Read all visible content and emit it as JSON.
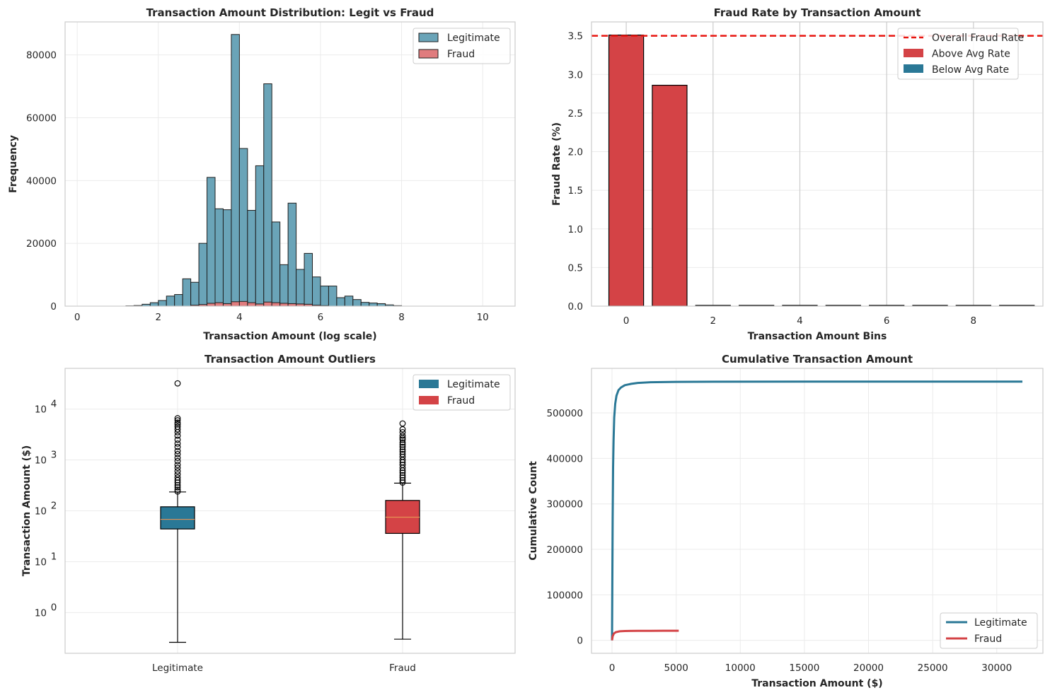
{
  "colors": {
    "legit": "#2a7896",
    "fraud": "#d44346",
    "legit_hist": "#6aa4b8",
    "fraud_hist": "#e07c7e",
    "grid": "#ebebeb",
    "spine": "#cccccc",
    "overall_line": "#e8150f",
    "median": "#e69254"
  },
  "chart_data": [
    {
      "type": "histogram",
      "title": "Transaction Amount Distribution: Legit vs Fraud",
      "xlabel": "Transaction Amount (log scale)",
      "ylabel": "Frequency",
      "xlim": [
        -0.3,
        10.8
      ],
      "ylim": [
        0,
        90500
      ],
      "xticks": [
        0,
        2,
        4,
        6,
        8,
        10
      ],
      "xtick_labels": [
        "0",
        "2",
        "4",
        "6",
        "8",
        "10"
      ],
      "yticks": [
        0,
        20000,
        40000,
        60000,
        80000
      ],
      "ytick_labels": [
        "0",
        "20000",
        "40000",
        "60000",
        "80000"
      ],
      "legend_position": "top-right",
      "bin_width": 0.2,
      "series": [
        {
          "name": "Legitimate",
          "bin_starts": [
            1.2,
            1.4,
            1.6,
            1.8,
            2.0,
            2.2,
            2.4,
            2.6,
            2.8,
            3.0,
            3.2,
            3.4,
            3.6,
            3.8,
            4.0,
            4.2,
            4.4,
            4.6,
            4.8,
            5.0,
            5.2,
            5.4,
            5.6,
            5.8,
            6.0,
            6.2,
            6.4,
            6.6,
            6.8,
            7.0,
            7.2,
            7.4,
            7.6,
            7.8
          ],
          "values": [
            100,
            200,
            600,
            1100,
            1800,
            3200,
            3700,
            8700,
            7600,
            20000,
            41000,
            31000,
            30700,
            86500,
            50200,
            30500,
            44700,
            70800,
            26800,
            13200,
            32800,
            11700,
            16800,
            9300,
            6400,
            6400,
            2700,
            3200,
            2100,
            1200,
            1000,
            800,
            400,
            150
          ]
        },
        {
          "name": "Fraud",
          "bin_starts": [
            2.8,
            3.0,
            3.2,
            3.4,
            3.6,
            3.8,
            4.0,
            4.2,
            4.4,
            4.6,
            4.8,
            5.0,
            5.2,
            5.4,
            5.6,
            5.8,
            6.0
          ],
          "values": [
            300,
            500,
            900,
            1100,
            800,
            1400,
            1500,
            1100,
            700,
            1300,
            1100,
            900,
            800,
            700,
            600,
            300,
            150
          ]
        }
      ]
    },
    {
      "type": "bar",
      "title": "Fraud Rate by Transaction Amount",
      "xlabel": "Transaction Amount Bins",
      "ylabel": "Fraud Rate (%)",
      "xlim": [
        -0.8,
        9.6
      ],
      "ylim": [
        0,
        3.68
      ],
      "xticks": [
        0,
        2,
        4,
        6,
        8
      ],
      "xtick_labels": [
        "0",
        "2",
        "4",
        "6",
        "8"
      ],
      "yticks": [
        0,
        0.5,
        1.0,
        1.5,
        2.0,
        2.5,
        3.0,
        3.5
      ],
      "ytick_labels": [
        "0.0",
        "0.5",
        "1.0",
        "1.5",
        "2.0",
        "2.5",
        "3.0",
        "3.5"
      ],
      "categories": [
        0,
        1,
        2,
        3,
        4,
        5,
        6,
        7,
        8,
        9
      ],
      "values": [
        3.51,
        2.86,
        0.01,
        0.01,
        0.01,
        0.01,
        0.01,
        0.01,
        0.01,
        0.01
      ],
      "overall_fraud_rate": 3.5,
      "legend_position": "top-right",
      "legend": [
        "Overall Fraud Rate",
        "Above Avg Rate",
        "Below Avg Rate"
      ]
    },
    {
      "type": "boxplot",
      "title": "Transaction Amount Outliers",
      "xlabel": "",
      "ylabel": "Transaction Amount ($)",
      "yscale": "log",
      "ylim_log10": [
        -0.8,
        4.8
      ],
      "ytick_exponents": [
        "0",
        "1",
        "2",
        "3",
        "4"
      ],
      "ytick_base": "10",
      "legend_position": "top-right",
      "legend": [
        "Legitimate",
        "Fraud"
      ],
      "boxes": [
        {
          "label": "Legitimate",
          "whislo": 0.26,
          "q1": 44,
          "median": 68,
          "q3": 120,
          "whishi": 235,
          "outliers": [
            240,
            260,
            290,
            320,
            360,
            400,
            450,
            520,
            600,
            700,
            800,
            950,
            1100,
            1300,
            1500,
            1800,
            2100,
            2500,
            3000,
            3500,
            4000,
            4500,
            5000,
            5400,
            6000,
            6600,
            32000
          ]
        },
        {
          "label": "Fraud",
          "whislo": 0.3,
          "q1": 36,
          "median": 75,
          "q3": 160,
          "whishi": 350,
          "outliers": [
            360,
            400,
            450,
            500,
            560,
            620,
            700,
            800,
            900,
            1000,
            1150,
            1300,
            1450,
            1600,
            1800,
            2000,
            2200,
            2500,
            2700,
            3000,
            3500,
            4000,
            5200
          ]
        }
      ]
    },
    {
      "type": "line",
      "title": "Cumulative Transaction Amount",
      "xlabel": "Transaction Amount ($)",
      "ylabel": "Cumulative Count",
      "xlim": [
        -1600,
        33600
      ],
      "ylim": [
        -28500,
        598000
      ],
      "xticks": [
        0,
        5000,
        10000,
        15000,
        20000,
        25000,
        30000
      ],
      "xtick_labels": [
        "0",
        "5000",
        "10000",
        "15000",
        "20000",
        "25000",
        "30000"
      ],
      "yticks": [
        0,
        100000,
        200000,
        300000,
        400000,
        500000
      ],
      "ytick_labels": [
        "0",
        "100000",
        "200000",
        "300000",
        "400000",
        "500000"
      ],
      "legend_position": "bottom-right",
      "series": [
        {
          "name": "Legitimate",
          "x": [
            0,
            20,
            50,
            80,
            120,
            170,
            250,
            350,
            500,
            700,
            1000,
            1500,
            2000,
            3000,
            5000,
            8000,
            15000,
            32000
          ],
          "y": [
            0,
            120000,
            270000,
            380000,
            440000,
            490000,
            520000,
            538000,
            550000,
            556000,
            561000,
            564000,
            566000,
            567500,
            568300,
            568600,
            568700,
            568800
          ]
        },
        {
          "name": "Fraud",
          "x": [
            0,
            50,
            150,
            300,
            600,
            1000,
            2000,
            3000,
            4000,
            5200
          ],
          "y": [
            0,
            9000,
            15000,
            18000,
            19800,
            20400,
            20800,
            21000,
            21050,
            21100
          ]
        }
      ]
    }
  ]
}
